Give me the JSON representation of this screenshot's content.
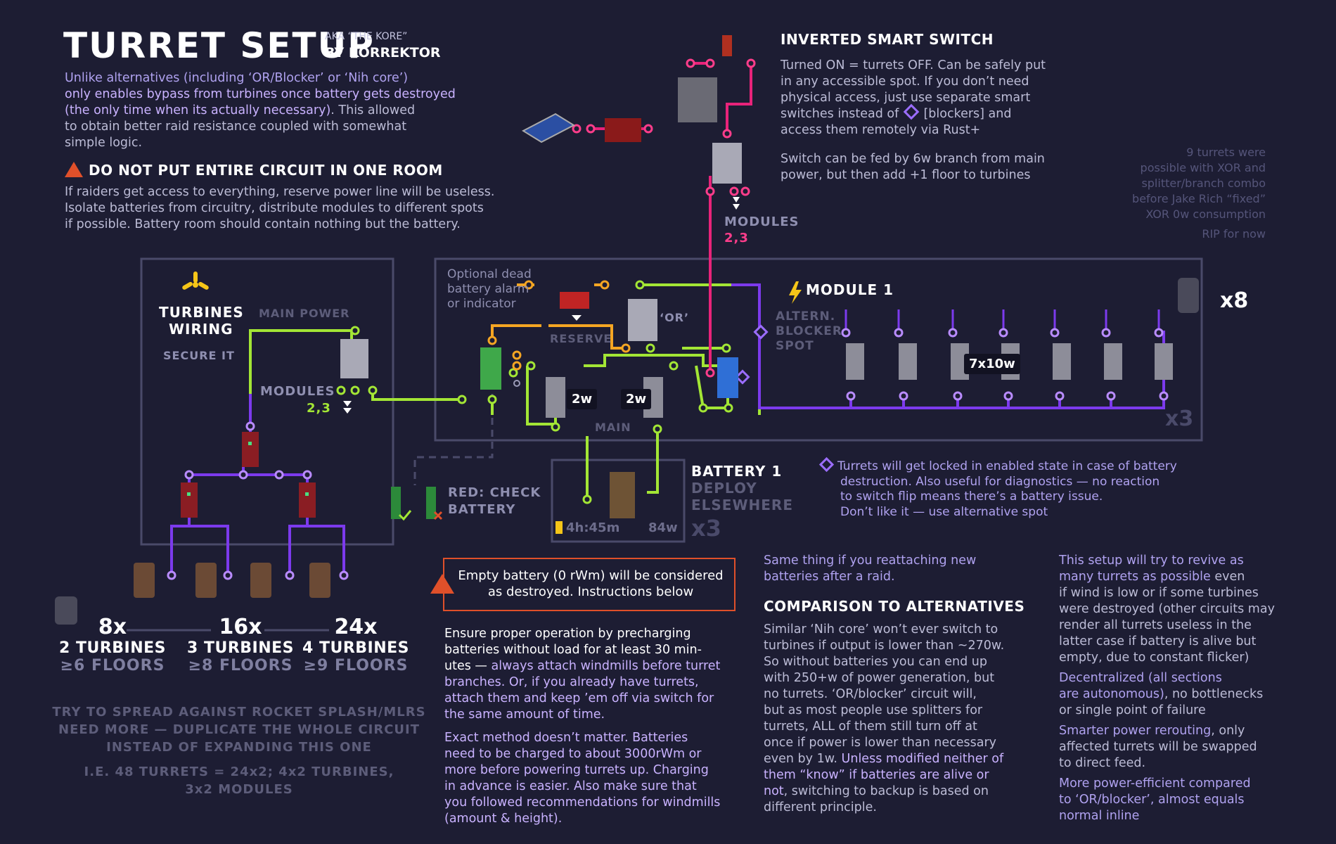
{
  "header": {
    "title": "TURRET SETUP",
    "aka": "AKA “THE KORE”",
    "by": "BY KORREKTOR"
  },
  "intro": {
    "line1": "Unlike alternatives (including ‘OR/Blocker’ or ‘Nih core’)",
    "line2": "only enables bypass from turbines once battery gets destroyed",
    "line3a": "(the only time when its actually necessary)",
    "line3b": ". This allowed",
    "line4": "to obtain better raid resistance coupled with somewhat",
    "line5": "simple logic."
  },
  "warning": {
    "title": "DO NOT PUT ENTIRE CIRCUIT IN ONE ROOM",
    "line1": "If raiders get access to everything, reserve power line will be useless.",
    "line2": "Isolate batteries from circuitry, distribute modules to different spots",
    "line3": "if possible. Battery room should contain nothing but the battery."
  },
  "smart_switch": {
    "title": "INVERTED SMART SWITCH",
    "line1": "Turned ON = turrets OFF. Can be safely put",
    "line2": "in any accessible spot. If you don’t need",
    "line3": "physical access, just use separate smart",
    "line4a": "switches instead of",
    "line4b": "[blockers] and",
    "line5": "access them remotely via Rust+",
    "line6": "Switch can be fed by 6w branch from main",
    "line7": "power, but then add +1 floor to turbines"
  },
  "side_note": {
    "line1": "9 turrets were",
    "line2": "possible with XOR and",
    "line3": "splitter/branch combo",
    "line4": "before Jake Rich “fixed”",
    "line5": "XOR 0w consumption",
    "line6": "RIP for now"
  },
  "turbines": {
    "title1": "TURBINES",
    "title2": "WIRING",
    "secure": "SECURE IT",
    "main_power": "MAIN POWER",
    "modules": "MODULES",
    "modules_nums": "2,3"
  },
  "modules_top": {
    "label": "MODULES",
    "nums": "2,3"
  },
  "module1": {
    "optional1": "Optional dead",
    "optional2": "battery alarm",
    "optional3": "or indicator",
    "or": "‘OR’",
    "reserve": "RESERVE",
    "main": "MAIN",
    "title": "MODULE 1",
    "altern1": "ALTERN.",
    "altern2": "BLOCKER",
    "altern3": "SPOT",
    "power1": "2w",
    "power2": "2w",
    "turret_tag": "7x10w",
    "x3": "x3",
    "x8": "x8"
  },
  "battery": {
    "title": "BATTERY 1",
    "deploy1": "DEPLOY",
    "deploy2": "ELSEWHERE",
    "time": "4h:45m",
    "watts": "84w",
    "x3": "x3"
  },
  "check": {
    "line1": "RED: CHECK",
    "line2": "BATTERY"
  },
  "locked_note": {
    "line1": "Turrets will get locked in enabled state in case of battery",
    "line2": "destruction. Also useful for diagnostics — no reaction",
    "line3": "to switch flip means there’s a battery issue.",
    "line4": "Don’t like it — use alternative spot"
  },
  "tiers": [
    {
      "count": "8x",
      "turbines": "2 TURBINES",
      "floors": "≥6 FLOORS"
    },
    {
      "count": "16x",
      "turbines": "3 TURBINES",
      "floors": "≥8 FLOORS"
    },
    {
      "count": "24x",
      "turbines": "4 TURBINES",
      "floors": "≥9 FLOORS"
    }
  ],
  "spread": {
    "line1": "TRY TO SPREAD AGAINST ROCKET SPLASH/MLRS",
    "line2": "NEED MORE — DUPLICATE THE WHOLE CIRCUIT",
    "line3": "INSTEAD OF EXPANDING THIS ONE",
    "line4": "I.E. 48 TURRETS = 24x2; 4x2 TURBINES,",
    "line5": "3x2 MODULES"
  },
  "empty_battery": {
    "line1": "Empty battery (0 rWm) will be considered",
    "line2": "as destroyed. Instructions below"
  },
  "precharge": {
    "p1_1": "Ensure proper operation by precharging",
    "p1_2": "batteries without load for at least 30 min-",
    "p1_3a": "utes — ",
    "p1_3b": "always attach windmills before turret",
    "p1_4": "branches. Or, if you already have turrets,",
    "p1_5": "attach them and keep ’em off via switch for",
    "p1_6": "the same amount of time.",
    "p2_1": "Exact method doesn’t matter. Batteries",
    "p2_2": "need to be charged to about 3000rWm or",
    "p2_3": "more before powering turrets up. Charging",
    "p2_4": "in advance is easier. Also make sure that",
    "p2_5": "you followed recommendations for windmills",
    "p2_6": "(amount & height)."
  },
  "comparison": {
    "same1": "Same thing if you reattaching new",
    "same2": "batteries after a raid.",
    "title": "COMPARISON TO ALTERNATIVES",
    "l1": "Similar ‘Nih core’ won’t ever switch to",
    "l2": "turbines if output is lower than ~270w.",
    "l3": "So without batteries you can end up",
    "l4": "with 250+w of power generation, but",
    "l5": "no turrets. ‘OR/blocker’ circuit will,",
    "l6": "but as most people use splitters for",
    "l7": "turrets, ALL of them still turn off at",
    "l8": "once if power is lower than necessary",
    "l9a": "even by 1w. ",
    "l9b": "Unless modified neither of",
    "l10": "them “know” if batteries are alive or",
    "l11a": "not",
    "l11b": ", switching to backup is based on",
    "l12": "different principle."
  },
  "benefits": {
    "b1_1": "This setup will try to revive as",
    "b1_2a": "many turrets as possible",
    "b1_2b": " even",
    "b1_3": "if wind is low or if some turbines",
    "b1_4": "were destroyed (other circuits may",
    "b1_5": "render all turrets useless in the",
    "b1_6": "latter case if battery is alive but",
    "b1_7": "empty, due to constant flicker)",
    "b2_1": "Decentralized (all sections",
    "b2_2a": "are autonomous)",
    "b2_2b": ", no bottlenecks",
    "b2_3": "or single point of failure",
    "b3_1a": "Smarter power rerouting",
    "b3_1b": ", only",
    "b3_2": "affected turrets will be swapped",
    "b3_3": "to direct feed.",
    "b4_1": "More power-efficient compared",
    "b4_2": "to ‘OR/blocker’, almost equals",
    "b4_3": "normal inline"
  },
  "colors": {
    "background": "#1d1d33",
    "main_power": "#a3e635",
    "reserve": "#f5a623",
    "smart_switch": "#e8237a",
    "module_feed": "#7c3aed",
    "box_border": "#4a4a6a",
    "warning": "#e0502a"
  }
}
